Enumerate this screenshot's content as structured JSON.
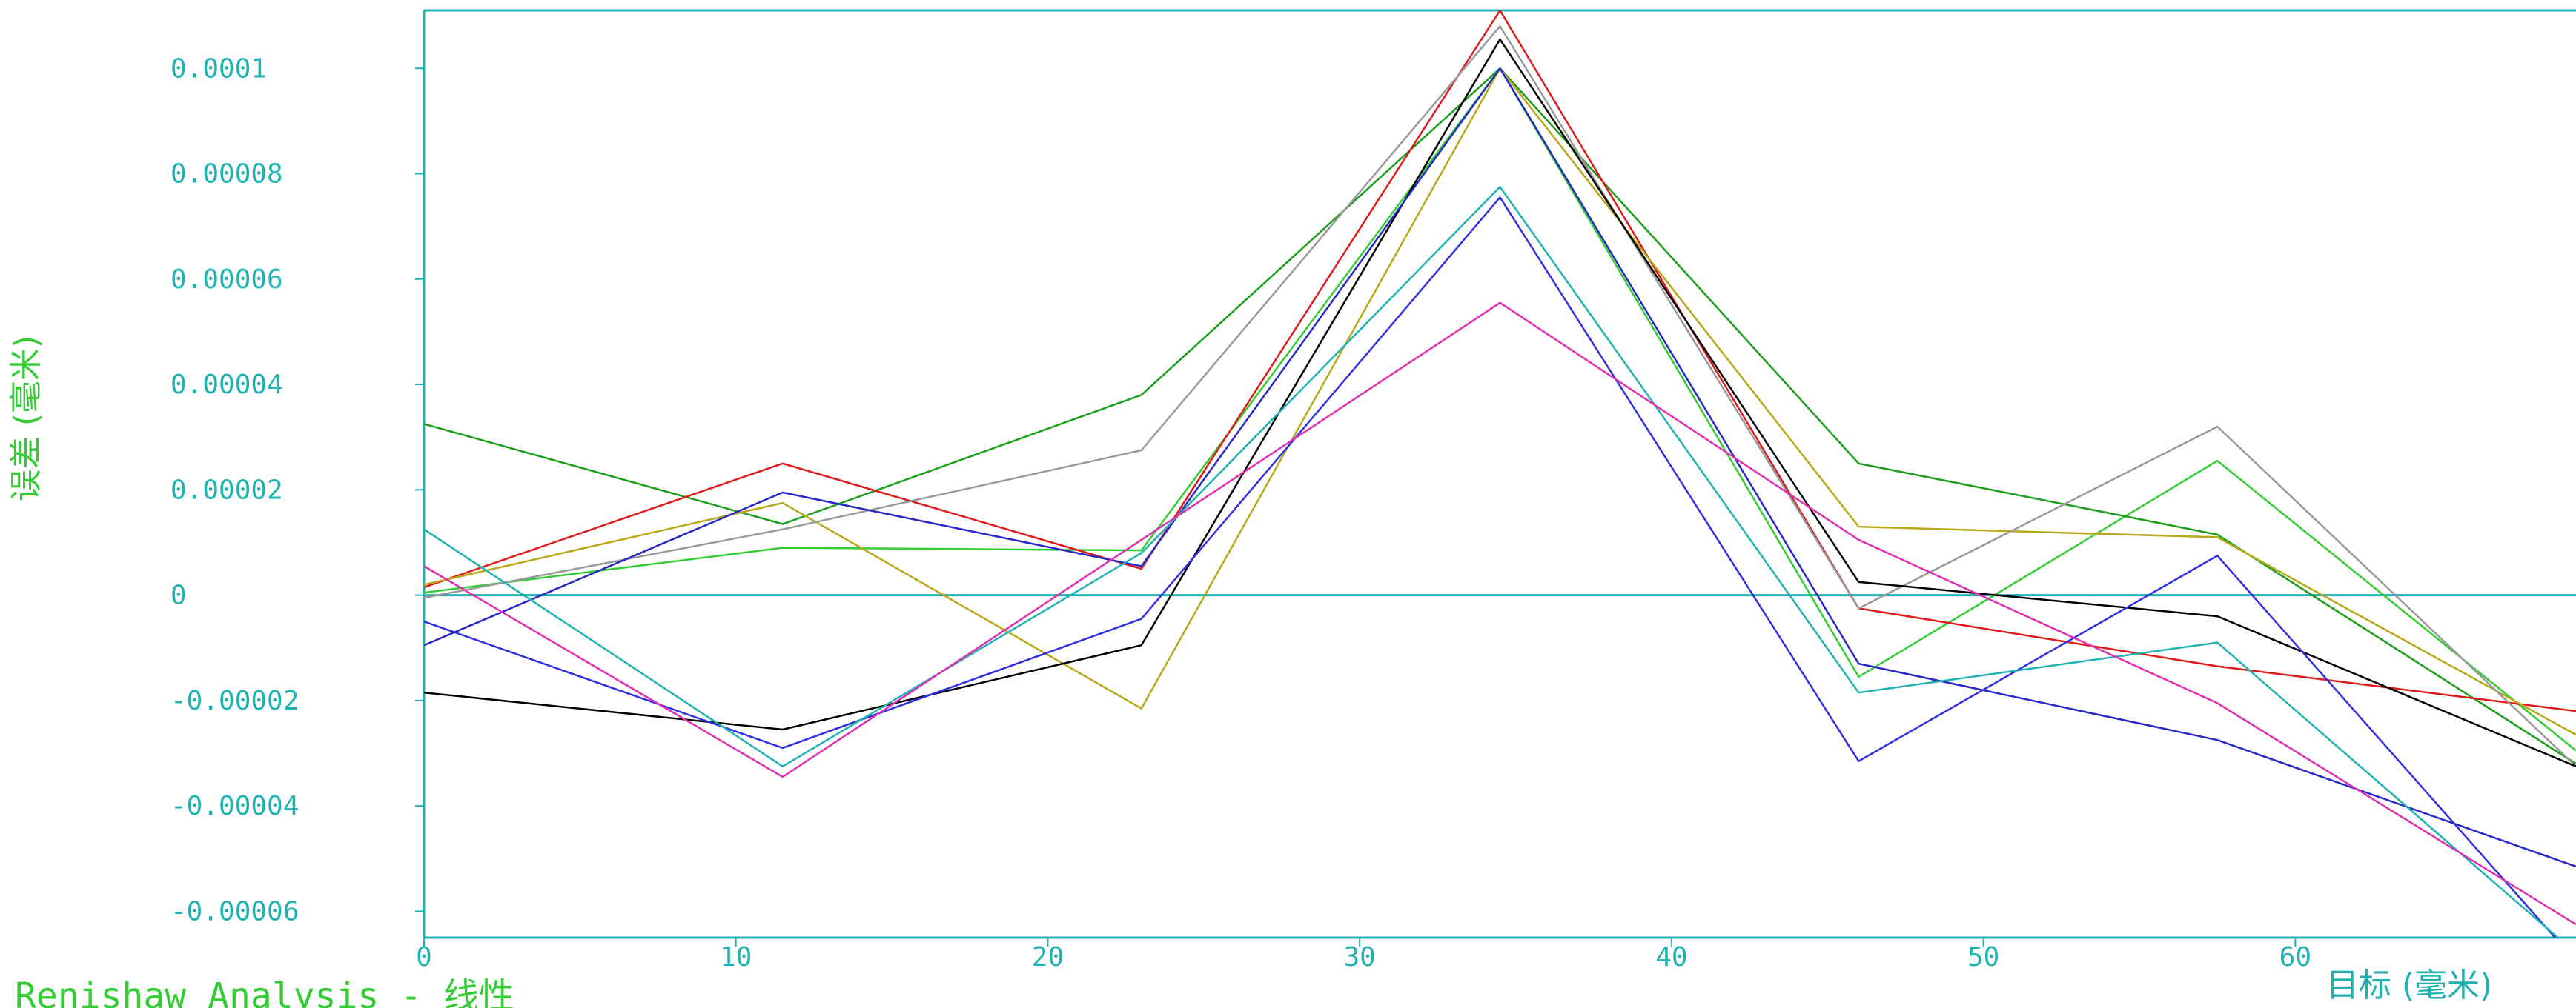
{
  "chart_data": {
    "type": "line",
    "title": "",
    "footer": "Renishaw Analysis - 线性",
    "xlabel": "目标 (毫米)",
    "ylabel": "误差 (毫米)",
    "xlim": [
      0,
      69
    ],
    "ylim": [
      -6.5e-05,
      0.000111
    ],
    "xticks": [
      0,
      10,
      20,
      30,
      40,
      50,
      60
    ],
    "xtick_labels": [
      "0",
      "10",
      "20",
      "30",
      "40",
      "50",
      "60"
    ],
    "yticks": [
      0.0001,
      8e-05,
      6e-05,
      4e-05,
      2e-05,
      0,
      -2e-05,
      -4e-05,
      -6e-05
    ],
    "ytick_labels": [
      "0.0001",
      "0.00008",
      "0.00006",
      "0.00004",
      "0.00002",
      "0",
      "-0.00002",
      "-0.00004",
      "-0.00006"
    ],
    "grid": false,
    "x": [
      0,
      11.5,
      23,
      34.5,
      46,
      57.5,
      69
    ],
    "series": [
      {
        "color": "#33cc33",
        "values": [
          5e-07,
          9e-06,
          8.5e-06,
          0.0001,
          -1.55e-05,
          2.55e-05,
          -2.95e-05
        ]
      },
      {
        "color": "#1a9e1a",
        "values": [
          3.25e-05,
          1.35e-05,
          3.8e-05,
          0.0001,
          2.5e-05,
          1.15e-05,
          -3.2e-05
        ]
      },
      {
        "color": "#e01a1a",
        "values": [
          1.5e-06,
          2.5e-05,
          5e-06,
          0.000111,
          -2.5e-06,
          -1.35e-05,
          -2.2e-05
        ]
      },
      {
        "color": "#b8a818",
        "values": [
          2e-06,
          1.75e-05,
          -2.15e-05,
          0.0001,
          1.3e-05,
          1.1e-05,
          -2.65e-05
        ]
      },
      {
        "color": "#999999",
        "values": [
          -5e-07,
          1.25e-05,
          2.75e-05,
          0.000108,
          -2.5e-06,
          3.2e-05,
          -3.25e-05
        ]
      },
      {
        "color": "#000000",
        "values": [
          -1.85e-05,
          -2.55e-05,
          -9.5e-06,
          0.0001055,
          2.5e-06,
          -4e-06,
          -3.25e-05
        ]
      },
      {
        "color": "#2828c8",
        "values": [
          -9.5e-06,
          1.95e-05,
          5.5e-06,
          0.0001,
          -1.3e-05,
          -2.75e-05,
          -5.15e-05
        ]
      },
      {
        "color": "#3030e0",
        "values": [
          -5e-06,
          -2.9e-05,
          -4.5e-06,
          7.55e-05,
          -3.15e-05,
          7.5e-06,
          -6.95e-05
        ]
      },
      {
        "color": "#20b2b2",
        "values": [
          1.25e-05,
          -3.25e-05,
          8e-06,
          7.75e-05,
          -1.85e-05,
          -9e-06,
          -6.8e-05
        ]
      },
      {
        "color": "#e030b0",
        "values": [
          5.5e-06,
          -3.45e-05,
          1.05e-05,
          5.55e-05,
          1.05e-05,
          -2.05e-05,
          -6.25e-05
        ]
      }
    ]
  }
}
